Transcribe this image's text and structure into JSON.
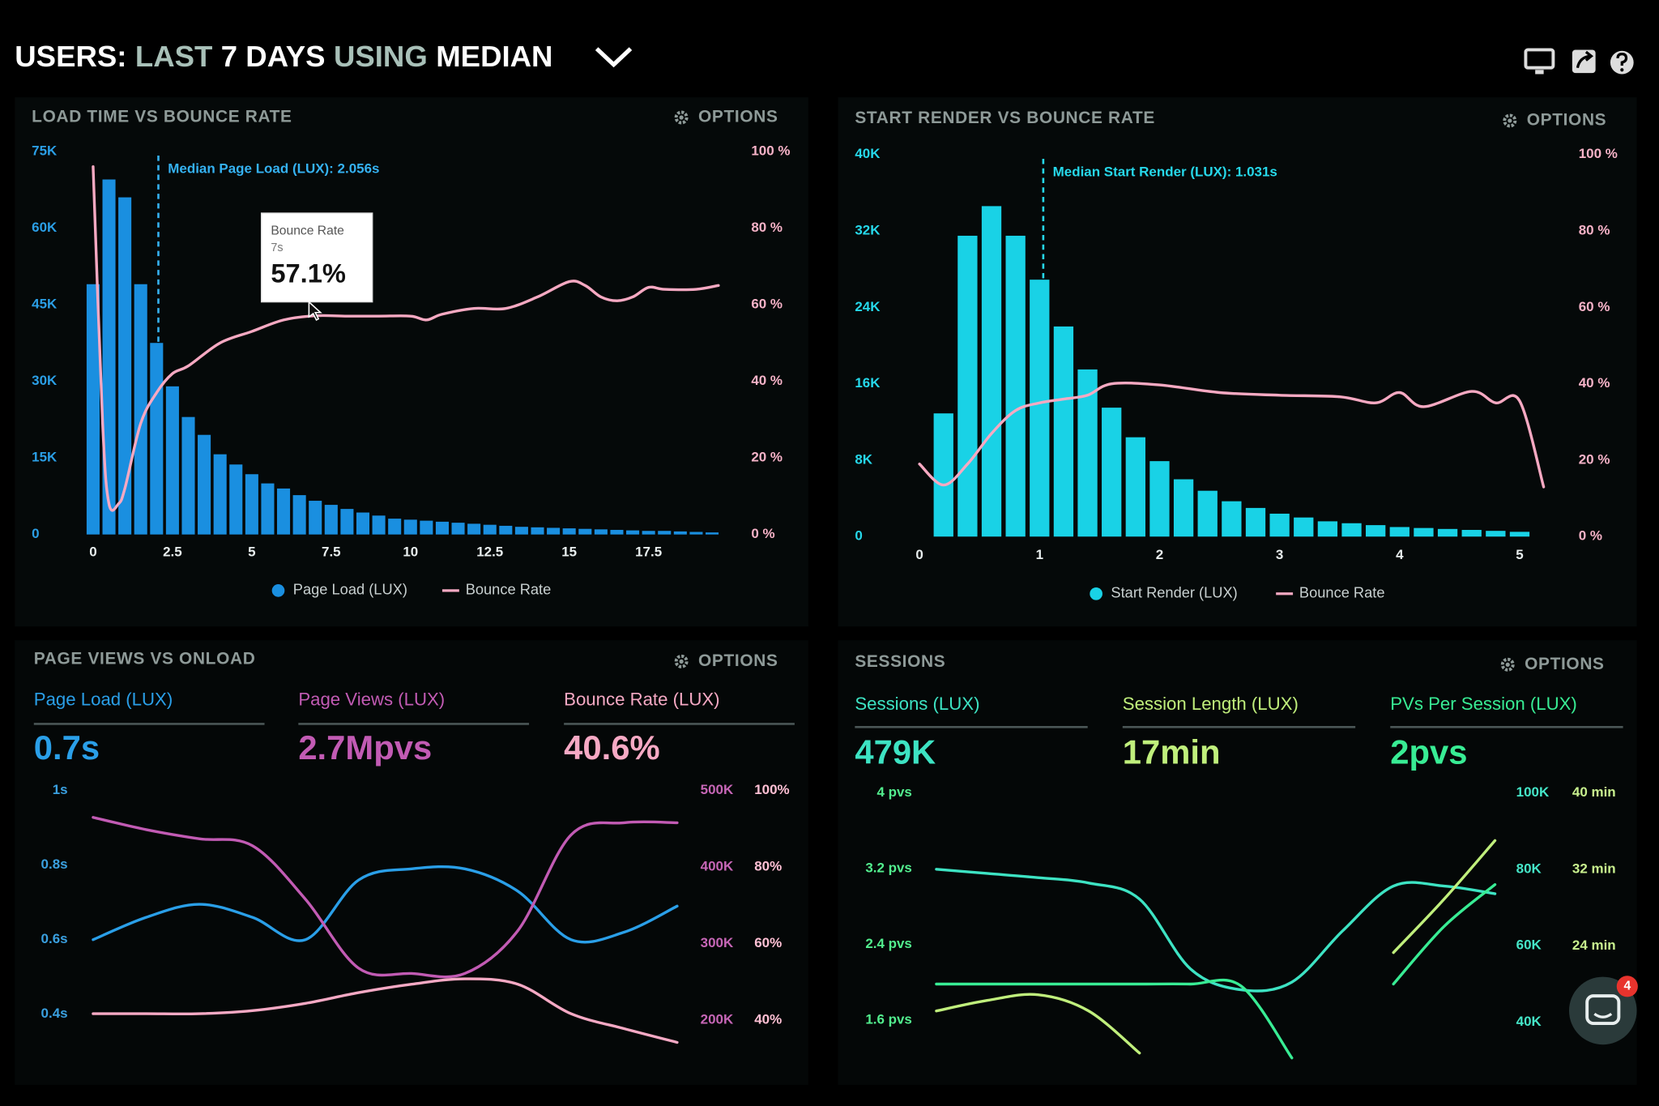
{
  "header": {
    "title_parts": [
      "USERS:",
      "LAST",
      "7 DAYS",
      "USING",
      "MEDIAN"
    ]
  },
  "chat_badge": 4,
  "chart_data": [
    {
      "type": "bar",
      "title": "LOAD TIME VS BOUNCE RATE",
      "options_label": "OPTIONS",
      "xlim": [
        -0.25,
        20
      ],
      "xticks": [
        0,
        2.5,
        5,
        7.5,
        10,
        12.5,
        15,
        17.5
      ],
      "ylim": [
        0,
        75000
      ],
      "yticks": [
        0,
        {
          "value": 15000,
          "label": "15K"
        },
        {
          "value": 30000,
          "label": "30K"
        },
        {
          "value": 45000,
          "label": "45K"
        },
        {
          "value": 60000,
          "label": "60K"
        },
        {
          "value": 75000,
          "label": "75K"
        }
      ],
      "y2lim": [
        0,
        100
      ],
      "y2ticks": [
        {
          "value": 0,
          "label": "0 %"
        },
        {
          "value": 20,
          "label": "20 %"
        },
        {
          "value": 40,
          "label": "40 %"
        },
        {
          "value": 60,
          "label": "60 %"
        },
        {
          "value": 80,
          "label": "80 %"
        },
        {
          "value": 100,
          "label": "100 %"
        }
      ],
      "legend": true,
      "median_line": {
        "value": 2.056,
        "label": "Median Page Load (LUX): 2.056s"
      },
      "tooltip": {
        "title": "Bounce Rate",
        "x": 7,
        "x_label": "7s",
        "value": 57.1,
        "value_label": "57.1%"
      },
      "series": [
        {
          "name": "Page Load (LUX)",
          "type": "bar",
          "color": "#1a8fe0",
          "x": [
            0,
            0.5,
            1,
            1.5,
            2,
            2.5,
            3,
            3.5,
            4,
            4.5,
            5,
            5.5,
            6,
            6.5,
            7,
            7.5,
            8,
            8.5,
            9,
            9.5,
            10,
            10.5,
            11,
            11.5,
            12,
            12.5,
            13,
            13.5,
            14,
            14.5,
            15,
            15.5,
            16,
            16.5,
            17,
            17.5,
            18,
            18.5,
            19,
            19.5
          ],
          "values": [
            49000,
            69500,
            66000,
            49000,
            37500,
            29000,
            23000,
            19500,
            15700,
            13700,
            11800,
            10000,
            9000,
            7700,
            6600,
            5800,
            5000,
            4300,
            3700,
            3100,
            2900,
            2700,
            2500,
            2300,
            2100,
            1900,
            1700,
            1500,
            1400,
            1300,
            1200,
            1100,
            1000,
            900,
            800,
            700,
            700,
            600,
            500,
            400
          ]
        },
        {
          "name": "Bounce Rate",
          "type": "line",
          "axis": "y2",
          "color": "#f7a9c2",
          "x": [
            0,
            0.3,
            0.5,
            0.8,
            1,
            1.5,
            2,
            2.5,
            3,
            4,
            5,
            6,
            7,
            8,
            9,
            10,
            10.5,
            11,
            12,
            13,
            14,
            15,
            15.5,
            16,
            16.5,
            17,
            17.5,
            18,
            19,
            19.7
          ],
          "values": [
            96,
            29,
            8,
            8,
            12,
            29,
            37,
            42,
            44,
            50,
            53,
            56,
            57.1,
            57,
            57,
            57,
            56,
            57.5,
            59,
            59,
            62,
            66,
            65,
            62,
            61,
            62,
            64.5,
            64,
            64,
            65
          ]
        }
      ]
    },
    {
      "type": "bar",
      "title": "START RENDER VS BOUNCE RATE",
      "options_label": "OPTIONS",
      "xlim": [
        -0.08,
        5.35
      ],
      "xticks": [
        0,
        1,
        2,
        3,
        4,
        5
      ],
      "ylim": [
        0,
        40000
      ],
      "yticks": [
        0,
        {
          "value": 8000,
          "label": "8K"
        },
        {
          "value": 16000,
          "label": "16K"
        },
        {
          "value": 24000,
          "label": "24K"
        },
        {
          "value": 32000,
          "label": "32K"
        },
        {
          "value": 40000,
          "label": "40K"
        }
      ],
      "y2lim": [
        0,
        100
      ],
      "y2ticks": [
        {
          "value": 0,
          "label": "0 %"
        },
        {
          "value": 20,
          "label": "20 %"
        },
        {
          "value": 40,
          "label": "40 %"
        },
        {
          "value": 60,
          "label": "60 %"
        },
        {
          "value": 80,
          "label": "80 %"
        },
        {
          "value": 100,
          "label": "100 %"
        }
      ],
      "legend": true,
      "median_line": {
        "value": 1.031,
        "label": "Median Start Render (LUX): 1.031s"
      },
      "series": [
        {
          "name": "Start Render (LUX)",
          "type": "bar",
          "color": "#19d2e6",
          "x": [
            0.2,
            0.4,
            0.6,
            0.8,
            1,
            1.2,
            1.4,
            1.6,
            1.8,
            2,
            2.2,
            2.4,
            2.6,
            2.8,
            3,
            3.2,
            3.4,
            3.6,
            3.8,
            4,
            4.2,
            4.4,
            4.6,
            4.8,
            5
          ],
          "values": [
            12900,
            31500,
            34600,
            31500,
            26900,
            22000,
            17500,
            13500,
            10400,
            7900,
            6000,
            4800,
            3700,
            3000,
            2400,
            2000,
            1600,
            1400,
            1200,
            1000,
            900,
            800,
            700,
            600,
            500
          ]
        },
        {
          "name": "Bounce Rate",
          "type": "line",
          "axis": "y2",
          "color": "#f7a9c2",
          "x": [
            0,
            0.2,
            0.4,
            0.6,
            0.8,
            1,
            1.2,
            1.4,
            1.6,
            2,
            2.5,
            3,
            3.5,
            3.8,
            4,
            4.2,
            4.6,
            4.8,
            5,
            5.2
          ],
          "values": [
            19,
            13.5,
            19,
            27,
            33,
            35,
            36,
            37,
            40,
            39.7,
            37.7,
            37,
            36.6,
            35,
            37.7,
            34,
            38,
            35,
            35.5,
            13
          ]
        }
      ]
    },
    {
      "type": "line",
      "title": "PAGE VIEWS VS ONLOAD",
      "options_label": "OPTIONS",
      "categories": [
        null,
        null,
        null,
        null,
        null,
        null,
        null,
        null,
        null,
        null,
        null,
        null
      ],
      "ylim": [
        0.31,
        1
      ],
      "yticks": [
        {
          "value": 1,
          "label": "1s"
        },
        {
          "value": 0.8,
          "label": "0.8s"
        },
        {
          "value": 0.6,
          "label": "0.6s"
        },
        {
          "value": 0.4,
          "label": "0.4s"
        }
      ],
      "y2lim": [
        164000,
        500000
      ],
      "y2ticks": [
        {
          "value": 500000,
          "label": "500K"
        },
        {
          "value": 400000,
          "label": "400K"
        },
        {
          "value": 300000,
          "label": "300K"
        },
        {
          "value": 200000,
          "label": "200K"
        }
      ],
      "y3lim": [
        32.8,
        100
      ],
      "y3ticks": [
        {
          "value": 100,
          "label": "100%"
        },
        {
          "value": 80,
          "label": "80%"
        },
        {
          "value": 60,
          "label": "60%"
        },
        {
          "value": 40,
          "label": "40%"
        }
      ],
      "series": [
        {
          "name": "Page Load (LUX)",
          "summary": "0.7s",
          "color": "#2a9fe8",
          "values": [
            0.6,
            0.66,
            0.695,
            0.66,
            0.6,
            0.76,
            0.79,
            0.79,
            0.73,
            0.6,
            0.62,
            0.69
          ]
        },
        {
          "name": "Page Views (LUX)",
          "summary": "2.7Mpvs",
          "color": "#c25bb4",
          "axis": "y2",
          "values": [
            465000,
            449000,
            437000,
            428000,
            358000,
            268000,
            261000,
            261000,
            317000,
            442000,
            458000,
            458000
          ]
        },
        {
          "name": "Bounce Rate (LUX)",
          "summary": "40.6%",
          "color": "#f6a9c4",
          "axis": "y3",
          "values": [
            41.7,
            41.7,
            41.7,
            42.5,
            44.4,
            47.2,
            49.4,
            50.8,
            49.4,
            41.7,
            37.8,
            34.2
          ]
        }
      ]
    },
    {
      "type": "line",
      "title": "SESSIONS",
      "options_label": "OPTIONS",
      "categories": [
        null,
        null,
        null,
        null,
        null,
        null,
        null,
        null,
        null,
        null,
        null,
        null
      ],
      "ylim": [
        1.14,
        4
      ],
      "yticks": [
        {
          "value": 4,
          "label": "4 pvs"
        },
        {
          "value": 3.2,
          "label": "3.2 pvs"
        },
        {
          "value": 2.4,
          "label": "2.4 pvs"
        },
        {
          "value": 1.6,
          "label": "1.6 pvs"
        }
      ],
      "y2lim": [
        29200,
        100000
      ],
      "y2ticks": [
        {
          "value": 100000,
          "label": "100K"
        },
        {
          "value": 80000,
          "label": "80K"
        },
        {
          "value": 60000,
          "label": "60K"
        },
        {
          "value": 40000,
          "label": "40K"
        }
      ],
      "y3lim": [
        11.7,
        40
      ],
      "y3ticks": [
        {
          "value": 40,
          "label": "40 min"
        },
        {
          "value": 32,
          "label": "32 min"
        },
        {
          "value": 24,
          "label": "24 min"
        }
      ],
      "series": [
        {
          "name": "Sessions (LUX)",
          "summary": "479K",
          "color": "#3de3c3",
          "axis": "y2",
          "values": [
            80000,
            78900,
            77800,
            76400,
            72200,
            54000,
            48500,
            50500,
            63900,
            75600,
            75600,
            73600
          ]
        },
        {
          "name": "Session Length (LUX)",
          "summary": "17min",
          "color": "#c0ef7c",
          "axis": "y3",
          "values": [
            17.2,
            18.3,
            18.9,
            17.2,
            12.8,
            null,
            null,
            null,
            null,
            23.3,
            28.9,
            35
          ]
        },
        {
          "name": "PVs Per Session (LUX)",
          "summary": "2pvs",
          "color": "#38ec94",
          "values": [
            1.98,
            1.98,
            1.98,
            1.98,
            1.98,
            1.98,
            1.96,
            1.2,
            null,
            1.98,
            2.59,
            3.03
          ]
        }
      ]
    }
  ]
}
